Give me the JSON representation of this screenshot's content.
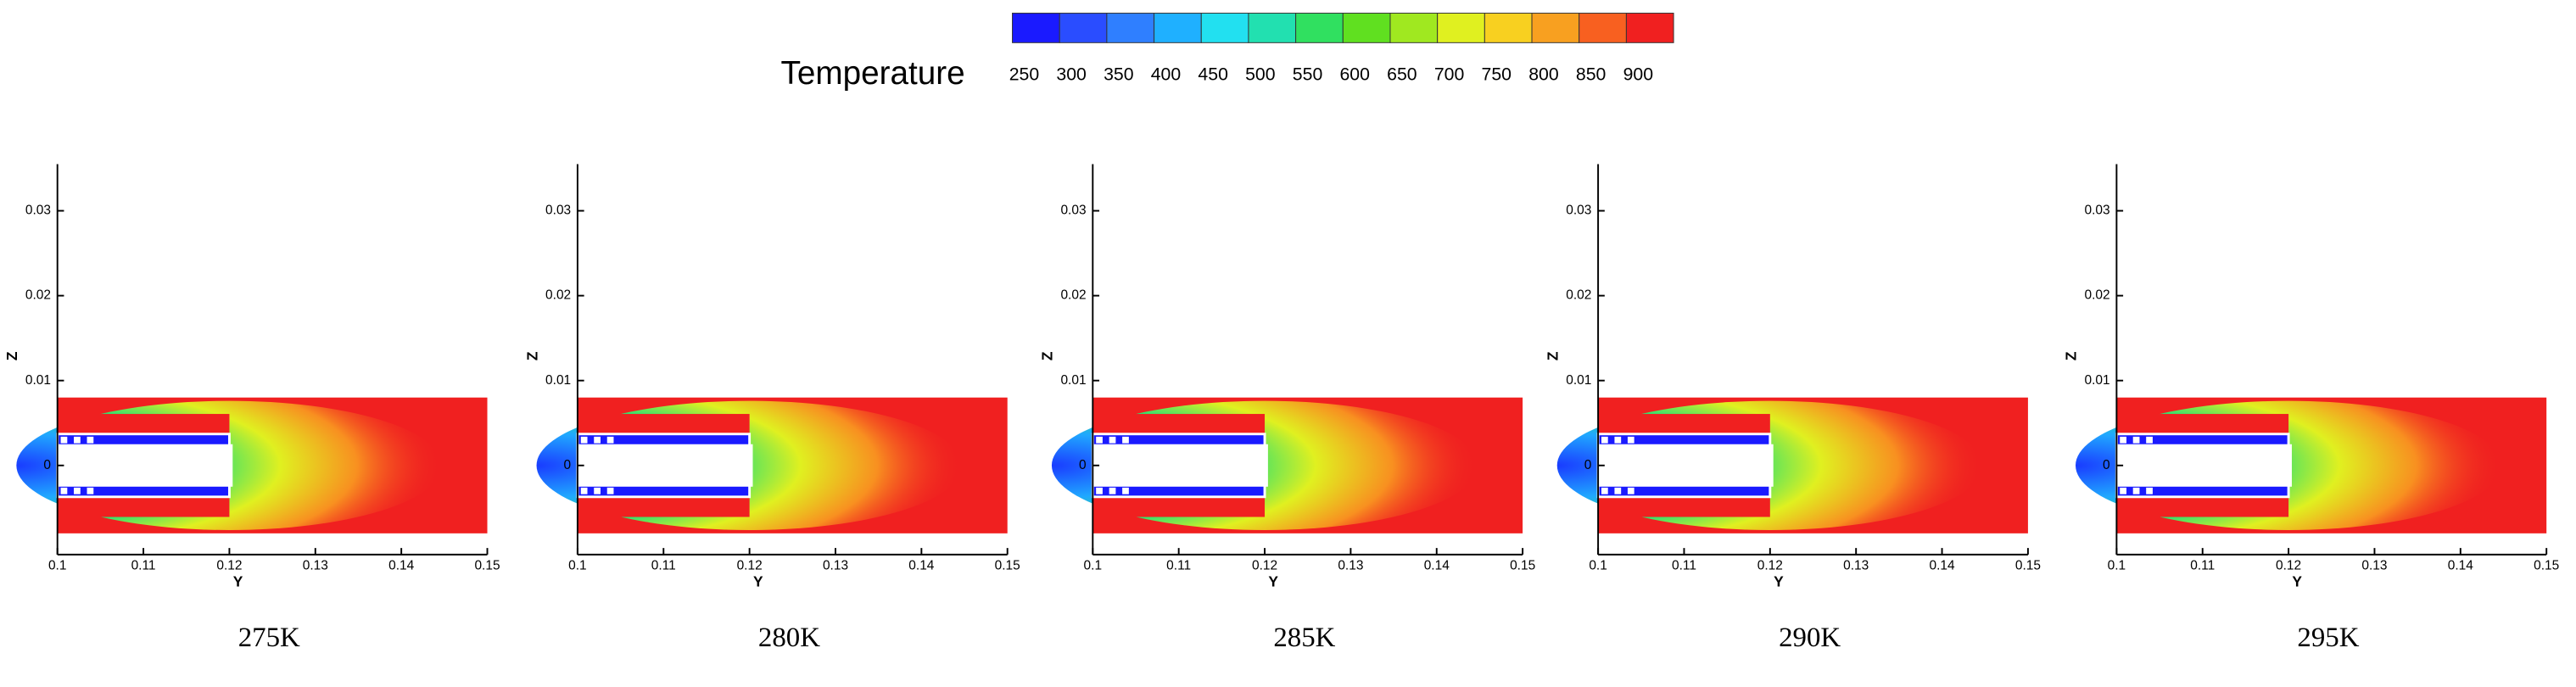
{
  "colorbar": {
    "title": "Temperature",
    "ticks": [
      250,
      300,
      350,
      400,
      450,
      500,
      550,
      600,
      650,
      700,
      750,
      800,
      850,
      900
    ],
    "colors": [
      "#1a1aff",
      "#2a4dff",
      "#2f7fff",
      "#1fb0ff",
      "#22e0f0",
      "#22e0b0",
      "#30e060",
      "#60e020",
      "#a0e820",
      "#e0f020",
      "#f8d020",
      "#f8a020",
      "#f86020",
      "#f02020"
    ]
  },
  "chart_data": [
    {
      "type": "contour",
      "caption": "275K",
      "xlabel": "Y",
      "ylabel": "Z",
      "xlim": [
        0.1,
        0.15
      ],
      "ylim": [
        -0.0105,
        0.0355
      ],
      "xticks": [
        0.1,
        0.11,
        0.12,
        0.13,
        0.14,
        0.15
      ],
      "yticks": [
        0,
        0.01,
        0.02,
        0.03
      ]
    },
    {
      "type": "contour",
      "caption": "280K",
      "xlabel": "Y",
      "ylabel": "Z",
      "xlim": [
        0.1,
        0.15
      ],
      "ylim": [
        -0.0105,
        0.0355
      ],
      "xticks": [
        0.1,
        0.11,
        0.12,
        0.13,
        0.14,
        0.15
      ],
      "yticks": [
        0,
        0.01,
        0.02,
        0.03
      ]
    },
    {
      "type": "contour",
      "caption": "285K",
      "xlabel": "Y",
      "ylabel": "Z",
      "xlim": [
        0.1,
        0.15
      ],
      "ylim": [
        -0.0105,
        0.0355
      ],
      "xticks": [
        0.1,
        0.11,
        0.12,
        0.13,
        0.14,
        0.15
      ],
      "yticks": [
        0,
        0.01,
        0.02,
        0.03
      ]
    },
    {
      "type": "contour",
      "caption": "290K",
      "xlabel": "Y",
      "ylabel": "Z",
      "xlim": [
        0.1,
        0.15
      ],
      "ylim": [
        -0.0105,
        0.0355
      ],
      "xticks": [
        0.1,
        0.11,
        0.12,
        0.13,
        0.14,
        0.15
      ],
      "yticks": [
        0,
        0.01,
        0.02,
        0.03
      ]
    },
    {
      "type": "contour",
      "caption": "295K",
      "xlabel": "Y",
      "ylabel": "Z",
      "xlim": [
        0.1,
        0.15
      ],
      "ylim": [
        -0.0105,
        0.0355
      ],
      "xticks": [
        0.1,
        0.11,
        0.12,
        0.13,
        0.14,
        0.15
      ],
      "yticks": [
        0,
        0.01,
        0.02,
        0.03
      ]
    }
  ]
}
